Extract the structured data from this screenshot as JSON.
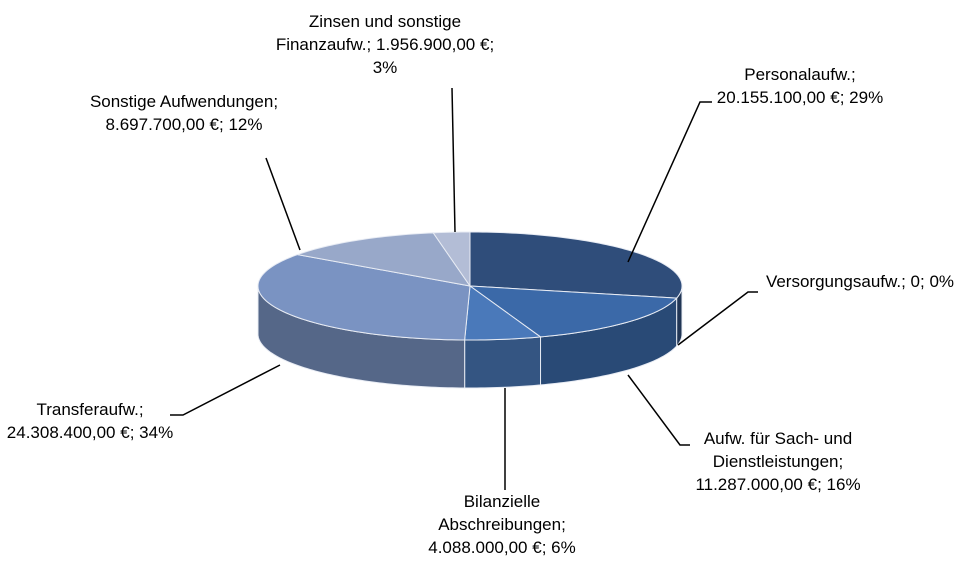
{
  "chart_data": {
    "type": "pie3d",
    "separator": "; ",
    "categories": [
      "Personalaufw.",
      "Versorgungsaufw.",
      "Aufw. für Sach- und Dienstleistungen",
      "Bilanzielle Abschreibungen",
      "Transferaufw.",
      "Sonstige Aufwendungen",
      "Zinsen und sonstige Finanzaufw."
    ],
    "values": [
      20155100,
      0,
      11287000,
      4088000,
      24308400,
      8697700,
      1956900
    ],
    "value_labels": [
      "20.155.100,00 €",
      "0",
      "11.287.000,00 €",
      "4.088.000,00 €",
      "24.308.400,00 €",
      "8.697.700,00 €",
      "1.956.900,00 €"
    ],
    "percents": [
      29,
      0,
      16,
      6,
      34,
      12,
      3
    ],
    "percent_labels": [
      "29%",
      "0%",
      "16%",
      "6%",
      "34%",
      "12%",
      "3%"
    ],
    "colors": [
      "#2f4d7a",
      "#3a66a3",
      "#3b69a8",
      "#4a79ba",
      "#7a93c2",
      "#98a8c9",
      "#b3bdd6"
    ]
  }
}
